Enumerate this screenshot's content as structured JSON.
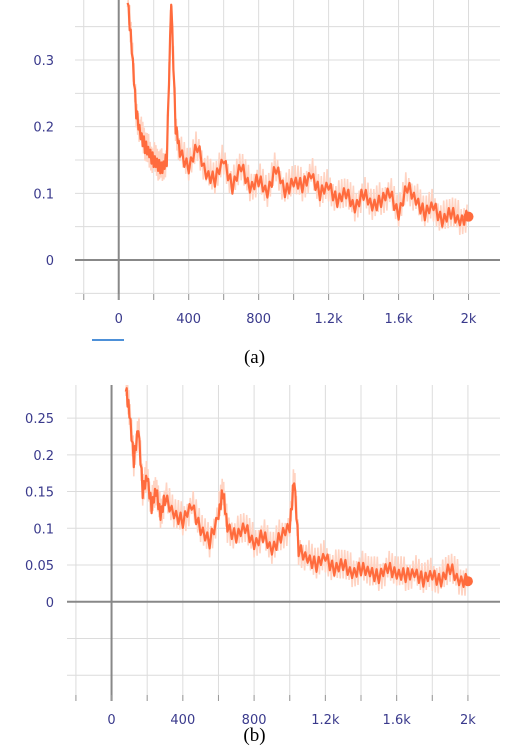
{
  "chart_data": [
    {
      "type": "line",
      "caption": "(a)",
      "xlim": [
        -250,
        2180
      ],
      "ylim": [
        -0.06,
        0.39
      ],
      "x_ticks": [
        0,
        400,
        800,
        1200,
        1600,
        2000
      ],
      "x_tick_labels": [
        "0",
        "400",
        "800",
        "1.2k",
        "1.6k",
        "2k"
      ],
      "y_ticks": [
        0,
        0.1,
        0.2,
        0.3
      ],
      "y_tick_labels": [
        "0",
        "0.1",
        "0.2",
        "0.3"
      ],
      "x_grid": [
        -200,
        0,
        200,
        400,
        600,
        800,
        1000,
        1200,
        1400,
        1600,
        1800,
        2000
      ],
      "y_grid": [
        -0.05,
        0,
        0.05,
        0.1,
        0.15,
        0.2,
        0.25,
        0.3,
        0.35
      ],
      "series": [
        {
          "color": "#ff6b3d",
          "raw_color": "#ffd3c2",
          "x": [
            50,
            75,
            100,
            125,
            150,
            175,
            200,
            225,
            250,
            275,
            300,
            325,
            350,
            400,
            450,
            500,
            550,
            600,
            650,
            700,
            750,
            800,
            850,
            900,
            950,
            1000,
            1050,
            1100,
            1150,
            1200,
            1250,
            1300,
            1350,
            1400,
            1450,
            1500,
            1550,
            1600,
            1650,
            1700,
            1750,
            1800,
            1850,
            1900,
            1950,
            2000
          ],
          "values": [
            0.39,
            0.32,
            0.22,
            0.19,
            0.17,
            0.16,
            0.15,
            0.14,
            0.14,
            0.15,
            0.39,
            0.2,
            0.16,
            0.14,
            0.17,
            0.13,
            0.12,
            0.15,
            0.11,
            0.14,
            0.11,
            0.12,
            0.1,
            0.14,
            0.1,
            0.12,
            0.11,
            0.13,
            0.1,
            0.11,
            0.09,
            0.1,
            0.08,
            0.1,
            0.08,
            0.09,
            0.1,
            0.07,
            0.11,
            0.09,
            0.07,
            0.08,
            0.06,
            0.07,
            0.06,
            0.065
          ]
        }
      ]
    },
    {
      "type": "line",
      "caption": "(b)",
      "xlim": [
        -250,
        2180
      ],
      "ylim": [
        -0.135,
        0.295
      ],
      "x_ticks": [
        0,
        400,
        800,
        1200,
        1600,
        2000
      ],
      "x_tick_labels": [
        "0",
        "400",
        "800",
        "1.2k",
        "1.6k",
        "2k"
      ],
      "y_ticks": [
        0,
        0.05,
        0.1,
        0.15,
        0.2,
        0.25
      ],
      "y_tick_labels": [
        "0",
        "0.05",
        "0.1",
        "0.15",
        "0.2",
        "0.25"
      ],
      "x_grid": [
        -200,
        0,
        200,
        400,
        600,
        800,
        1000,
        1200,
        1400,
        1600,
        1800,
        2000
      ],
      "y_grid": [
        -0.1,
        -0.05,
        0,
        0.05,
        0.1,
        0.15,
        0.2,
        0.25
      ],
      "series": [
        {
          "color": "#ff6b3d",
          "raw_color": "#ffd3c2",
          "x": [
            80,
            100,
            125,
            150,
            175,
            200,
            225,
            250,
            275,
            300,
            350,
            400,
            450,
            500,
            550,
            600,
            625,
            650,
            700,
            750,
            800,
            850,
            900,
            950,
            1000,
            1025,
            1050,
            1100,
            1150,
            1200,
            1250,
            1300,
            1350,
            1400,
            1450,
            1500,
            1550,
            1600,
            1650,
            1700,
            1750,
            1800,
            1850,
            1900,
            1950,
            2000
          ],
          "values": [
            0.29,
            0.26,
            0.19,
            0.24,
            0.15,
            0.17,
            0.13,
            0.15,
            0.12,
            0.14,
            0.12,
            0.11,
            0.13,
            0.1,
            0.08,
            0.12,
            0.15,
            0.1,
            0.09,
            0.1,
            0.08,
            0.09,
            0.07,
            0.09,
            0.1,
            0.17,
            0.07,
            0.06,
            0.05,
            0.06,
            0.045,
            0.05,
            0.04,
            0.045,
            0.04,
            0.035,
            0.045,
            0.04,
            0.035,
            0.04,
            0.03,
            0.035,
            0.03,
            0.045,
            0.03,
            0.028
          ]
        }
      ]
    }
  ]
}
